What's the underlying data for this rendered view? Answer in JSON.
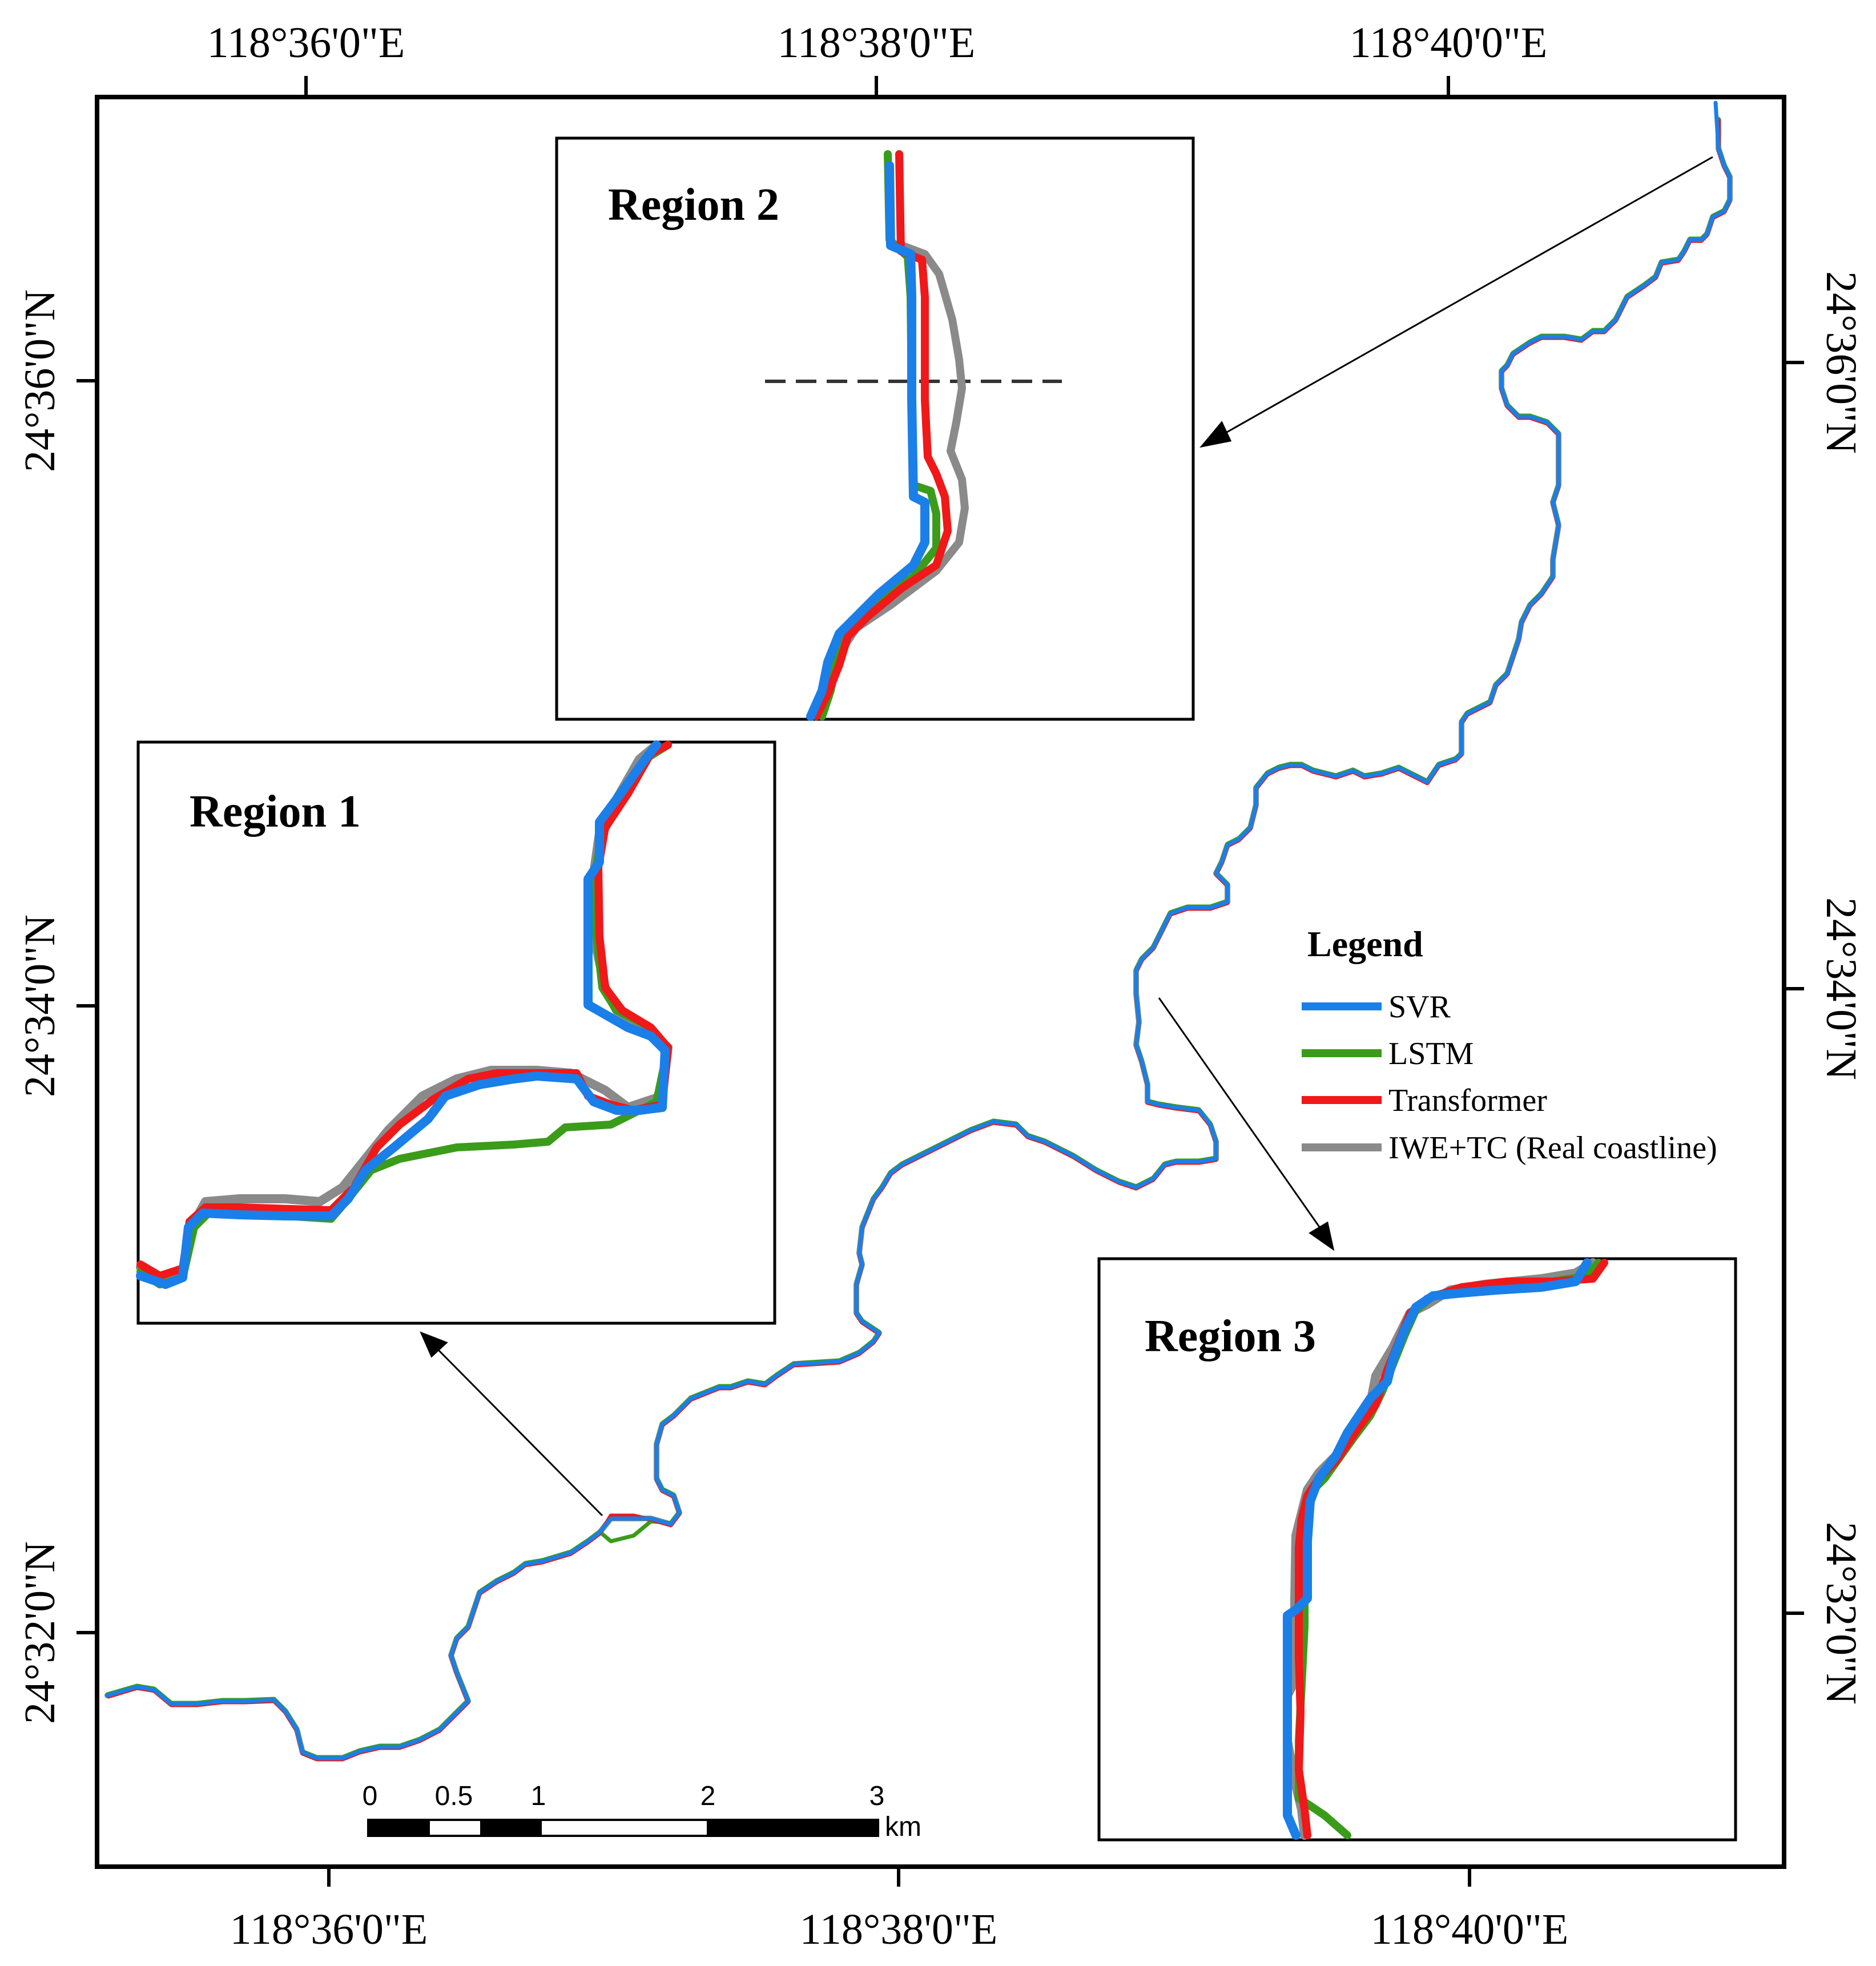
{
  "axes": {
    "top": [
      "118°36'0\"E",
      "118°38'0\"E",
      "118°40'0\"E"
    ],
    "bottom": [
      "118°36'0\"E",
      "118°38'0\"E",
      "118°40'0\"E"
    ],
    "left": [
      "24°36'0\"N",
      "24°34'0\"N",
      "24°32'0\"N"
    ],
    "right": [
      "24°36'0\"N",
      "24°34'0\"N",
      "24°32'0\"N"
    ]
  },
  "insets": {
    "region1": "Region 1",
    "region2": "Region 2",
    "region3": "Region 3"
  },
  "legend": {
    "title": "Legend",
    "items": [
      {
        "label": "SVR",
        "color": "#1a7fe8"
      },
      {
        "label": "LSTM",
        "color": "#3a9c1a"
      },
      {
        "label": "Transformer",
        "color": "#f01818"
      },
      {
        "label": "IWE+TC (Real coastline)",
        "color": "#8a8a8a"
      }
    ]
  },
  "scale_bar": {
    "ticks": [
      "0",
      "0.5",
      "1",
      "2",
      "3"
    ],
    "unit": "km"
  }
}
